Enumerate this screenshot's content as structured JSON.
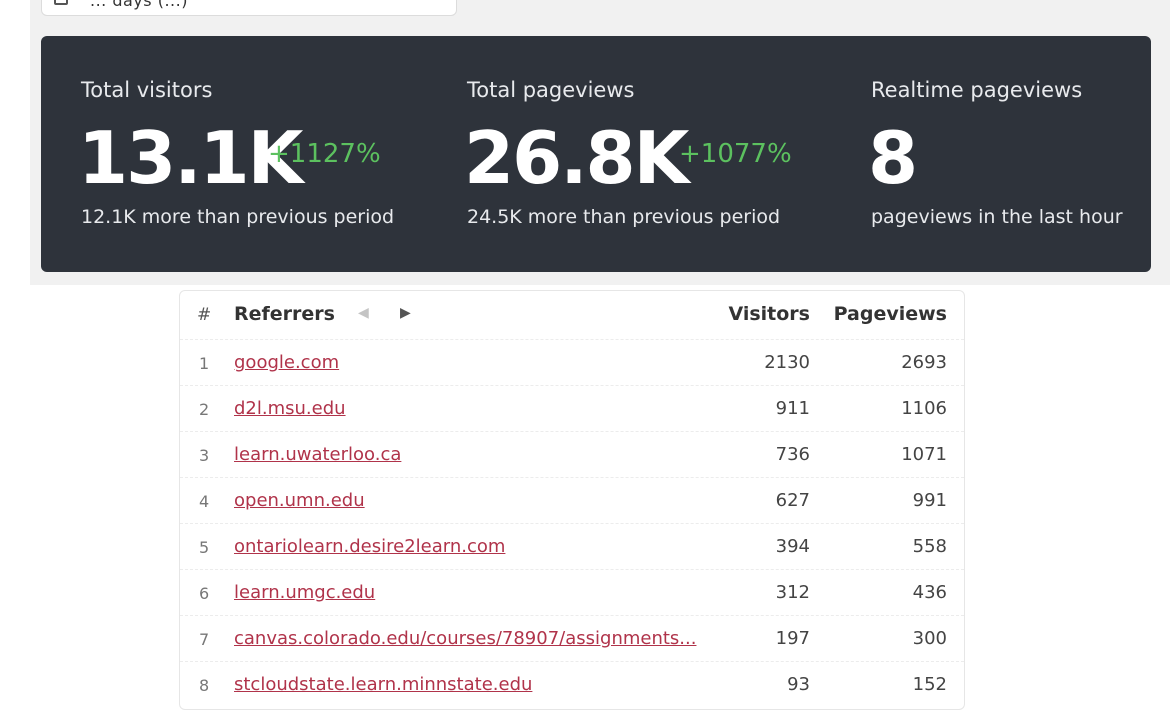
{
  "colors": {
    "panel_bg": "#2e333b",
    "positive": "#5cc15f",
    "link": "#b0334a",
    "background": "#f1f1f1"
  },
  "date_picker": {
    "icon": "calendar-icon",
    "label": "... days (...)"
  },
  "stats": [
    {
      "label": "Total visitors",
      "value": "13.1K",
      "change": "+1127%",
      "sub": "12.1K more than previous period"
    },
    {
      "label": "Total pageviews",
      "value": "26.8K",
      "change": "+1077%",
      "sub": "24.5K more than previous period"
    },
    {
      "label": "Realtime pageviews",
      "value": "8",
      "change": "",
      "sub": "pageviews in the last hour"
    }
  ],
  "referrers_table": {
    "headers": {
      "num": "#",
      "referrers": "Referrers",
      "visitors": "Visitors",
      "pageviews": "Pageviews"
    },
    "prev_icon": "triangle-left-icon",
    "next_icon": "triangle-right-icon",
    "rows": [
      {
        "num": "1",
        "referrer": "google.com",
        "visitors": "2130",
        "pageviews": "2693"
      },
      {
        "num": "2",
        "referrer": "d2l.msu.edu",
        "visitors": "911",
        "pageviews": "1106"
      },
      {
        "num": "3",
        "referrer": "learn.uwaterloo.ca",
        "visitors": "736",
        "pageviews": "1071"
      },
      {
        "num": "4",
        "referrer": "open.umn.edu",
        "visitors": "627",
        "pageviews": "991"
      },
      {
        "num": "5",
        "referrer": "ontariolearn.desire2learn.com",
        "visitors": "394",
        "pageviews": "558"
      },
      {
        "num": "6",
        "referrer": "learn.umgc.edu",
        "visitors": "312",
        "pageviews": "436"
      },
      {
        "num": "7",
        "referrer": "canvas.colorado.edu/courses/78907/assignments...",
        "visitors": "197",
        "pageviews": "300"
      },
      {
        "num": "8",
        "referrer": "stcloudstate.learn.minnstate.edu",
        "visitors": "93",
        "pageviews": "152"
      }
    ]
  }
}
